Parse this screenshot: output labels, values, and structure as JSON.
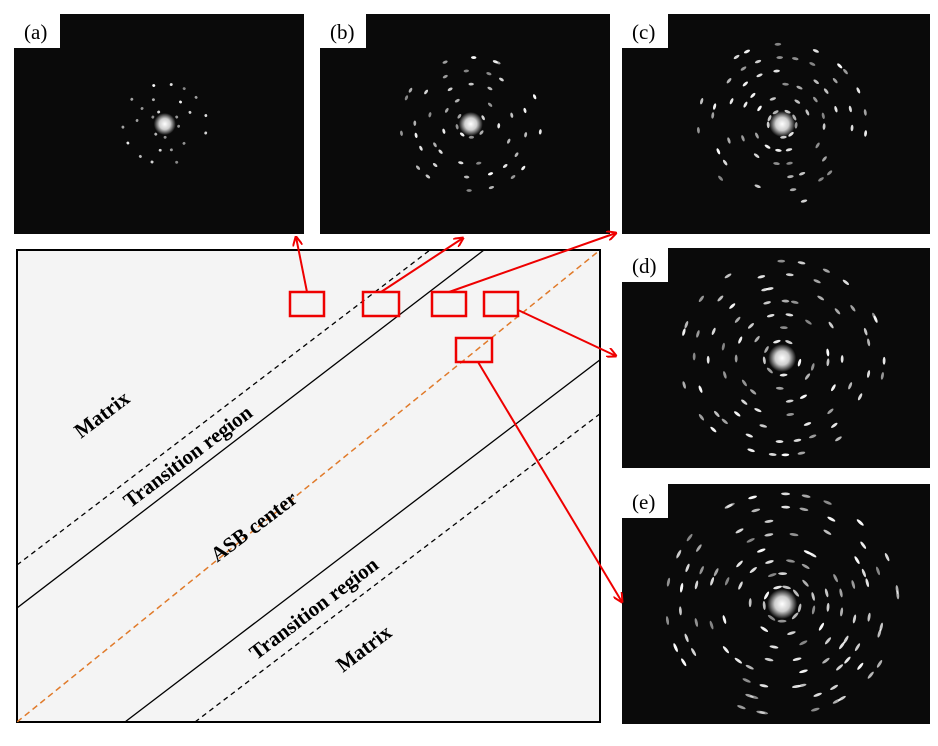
{
  "panels": [
    {
      "label": "(a)"
    },
    {
      "label": "(b)"
    },
    {
      "label": "(c)"
    },
    {
      "label": "(d)"
    },
    {
      "label": "(e)"
    }
  ],
  "regions": [
    {
      "label": "Matrix"
    },
    {
      "label": "Transition region"
    },
    {
      "label": "ASB center"
    },
    {
      "label": "Transition region"
    },
    {
      "label": "Matrix"
    }
  ]
}
